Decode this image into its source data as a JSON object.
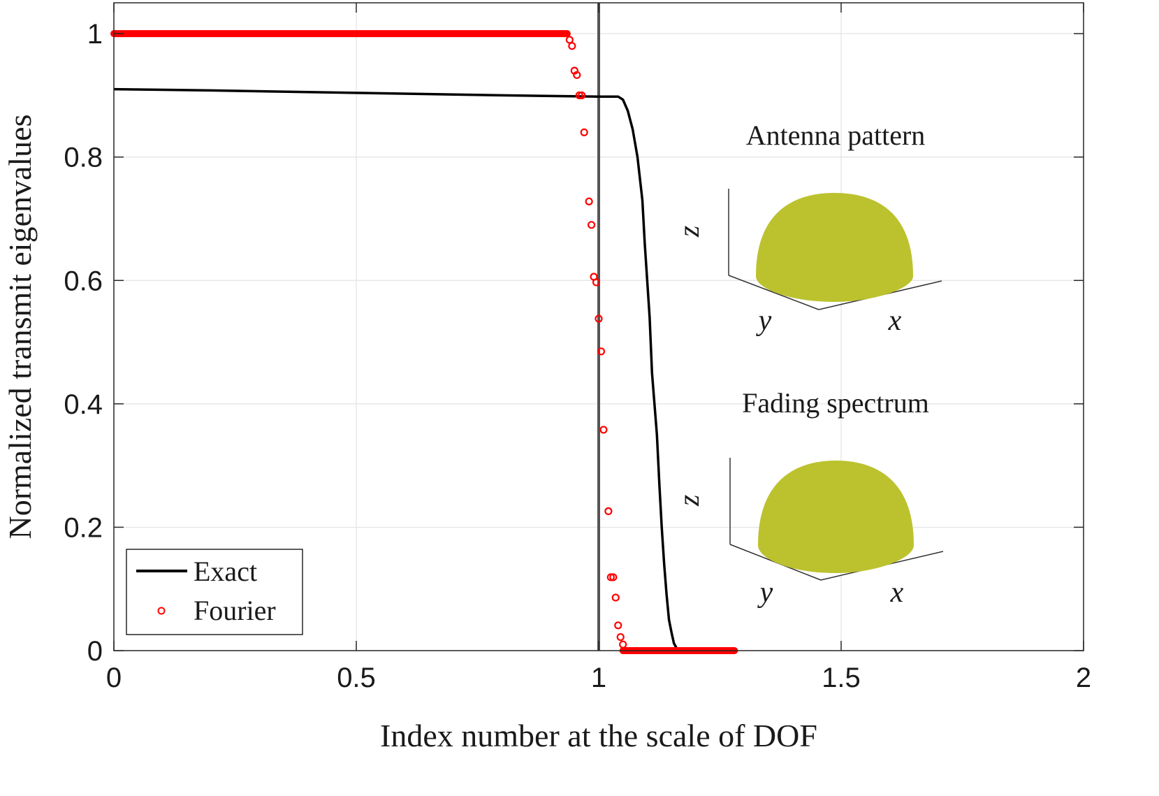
{
  "chart_data": {
    "type": "line",
    "title": "",
    "xlabel": "Index number at the scale of DOF",
    "ylabel": "Normalized transmit eigenvalues",
    "xlim": [
      0,
      2
    ],
    "ylim": [
      0,
      1.05
    ],
    "xticks": [
      0,
      0.5,
      1,
      1.5,
      2
    ],
    "xtick_labels": [
      "0",
      "0.5",
      "1",
      "1.5",
      "2"
    ],
    "yticks": [
      0,
      0.2,
      0.4,
      0.6,
      0.8,
      1
    ],
    "ytick_labels": [
      "0",
      "0.2",
      "0.4",
      "0.6",
      "0.8",
      "1"
    ],
    "grid": true,
    "legend_position": "bottom-left",
    "vertical_reference_line": 1,
    "series": [
      {
        "name": "Exact",
        "style": "line",
        "color": "#000000",
        "x": [
          0,
          0.2,
          0.5,
          0.8,
          1.0,
          1.04,
          1.05,
          1.06,
          1.07,
          1.08,
          1.09,
          1.095,
          1.1,
          1.105,
          1.11,
          1.12,
          1.125,
          1.13,
          1.135,
          1.14,
          1.145,
          1.15,
          1.155,
          1.16
        ],
        "y": [
          0.91,
          0.908,
          0.904,
          0.9,
          0.898,
          0.898,
          0.893,
          0.875,
          0.845,
          0.8,
          0.73,
          0.66,
          0.6,
          0.54,
          0.45,
          0.35,
          0.27,
          0.2,
          0.14,
          0.09,
          0.05,
          0.03,
          0.012,
          0.005
        ]
      },
      {
        "name": "Fourier",
        "style": "markers",
        "color": "#ff0000",
        "plateau_high": {
          "x_from": 0,
          "x_to": 0.935,
          "y": 1.0
        },
        "plateau_low": {
          "x_from": 1.05,
          "x_to": 1.28,
          "y": 0.0
        },
        "x": [
          0.94,
          0.945,
          0.95,
          0.955,
          0.96,
          0.965,
          0.97,
          0.98,
          0.985,
          0.99,
          0.995,
          1.0,
          1.005,
          1.01,
          1.02,
          1.025,
          1.03,
          1.035,
          1.04,
          1.045,
          1.05
        ],
        "y": [
          0.99,
          0.98,
          0.94,
          0.933,
          0.9,
          0.9,
          0.84,
          0.728,
          0.69,
          0.606,
          0.597,
          0.538,
          0.485,
          0.358,
          0.226,
          0.119,
          0.119,
          0.086,
          0.041,
          0.022,
          0.01
        ]
      }
    ],
    "legend": [
      "Exact",
      "Fourier"
    ],
    "insets": [
      {
        "title": "Antenna pattern",
        "labels": {
          "x": "x",
          "y": "y",
          "z": "z"
        },
        "fill": "#bcc22e"
      },
      {
        "title": "Fading spectrum",
        "labels": {
          "x": "x",
          "y": "y",
          "z": "z"
        },
        "fill": "#bcc22e"
      }
    ]
  }
}
